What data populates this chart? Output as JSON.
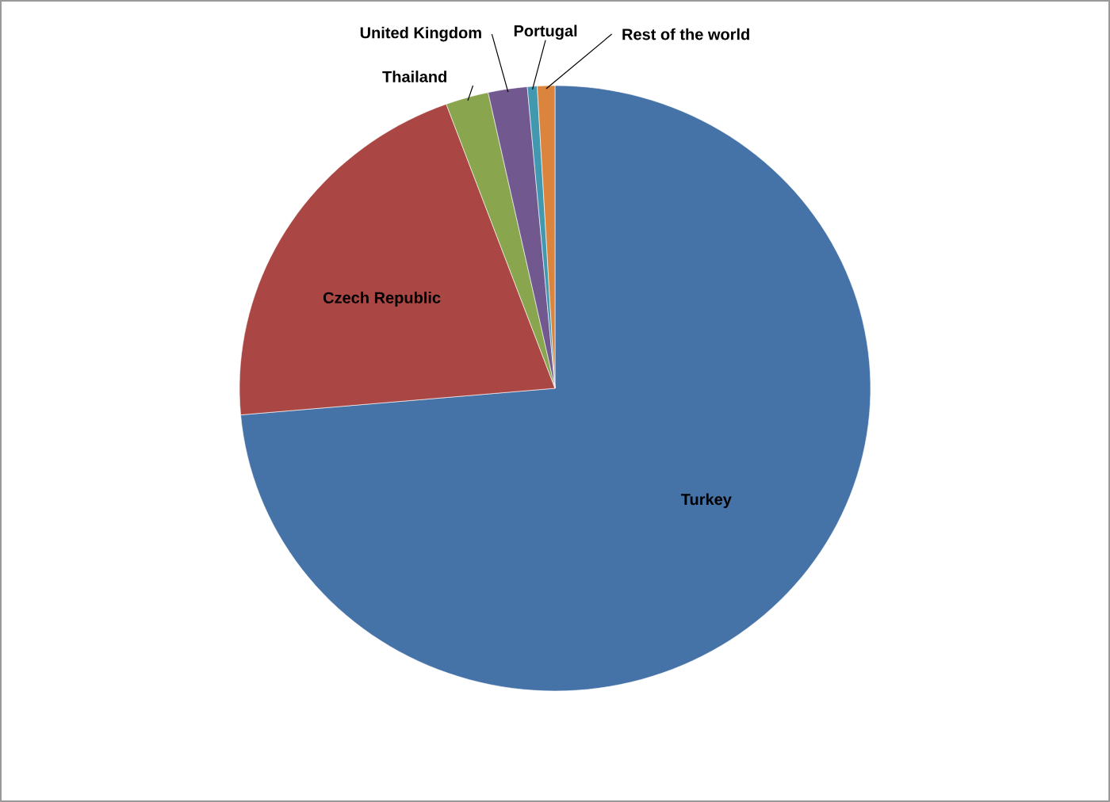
{
  "chart_data": {
    "type": "pie",
    "categories": [
      "Turkey",
      "Czech Republic",
      "Thailand",
      "United Kingdom",
      "Portugal",
      "Rest of the world"
    ],
    "values": [
      73.6,
      20.8,
      2.2,
      2.0,
      0.5,
      0.9
    ],
    "colors": [
      "#4572a7",
      "#aa4643",
      "#89a54e",
      "#71588f",
      "#4198af",
      "#db843d"
    ]
  }
}
